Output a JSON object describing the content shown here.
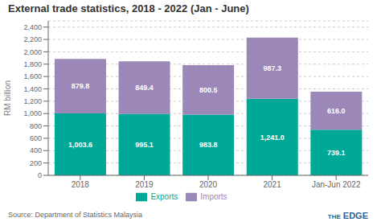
{
  "chart_data": {
    "type": "bar",
    "stacked": true,
    "title": "External trade statistics, 2018 - 2022 (Jan - June)",
    "categories": [
      "2018",
      "2019",
      "2020",
      "2021",
      "Jan-Jun 2022"
    ],
    "series": [
      {
        "name": "Exports",
        "color": "#00a898",
        "values": [
          1003.6,
          995.1,
          983.8,
          1241.0,
          739.1
        ],
        "value_labels": [
          "1,003.6",
          "995.1",
          "983.8",
          "1,241.0",
          "739.1"
        ]
      },
      {
        "name": "Imports",
        "color": "#9b87b8",
        "values": [
          879.8,
          849.4,
          800.5,
          987.3,
          616.0
        ],
        "value_labels": [
          "879.8",
          "849.4",
          "800.5",
          "987.3",
          "616.0"
        ]
      }
    ],
    "ylabel": "RM billion",
    "ylim": [
      0,
      2500
    ],
    "yticks": [
      0,
      200,
      400,
      600,
      800,
      {
        "value": 1000,
        "label": "1,000"
      },
      {
        "value": 1200,
        "label": "1,200"
      },
      {
        "value": 1400,
        "label": "1,400"
      },
      {
        "value": 1600,
        "label": "1,600"
      },
      {
        "value": 1800,
        "label": "1,800"
      },
      {
        "value": 2000,
        "label": "2,000"
      },
      {
        "value": 2200,
        "label": "2,200"
      },
      {
        "value": 2400,
        "label": "2,400"
      }
    ],
    "data_labels": true,
    "grid": true,
    "legend": "bottom",
    "source": "Source: Department of Statistics Malaysia",
    "annotations": [
      "THE",
      "EDGE"
    ]
  }
}
